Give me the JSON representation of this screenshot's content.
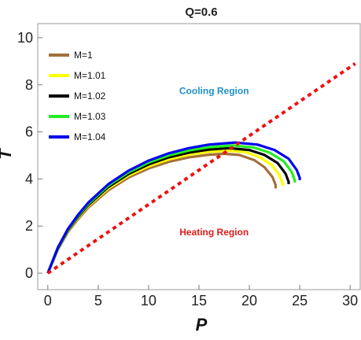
{
  "chart_data": {
    "type": "line",
    "title": "Q=0.6",
    "xlabel": "P",
    "ylabel": "T",
    "xlim": [
      -1,
      31
    ],
    "ylim": [
      -0.7,
      10.6
    ],
    "xticks": [
      0,
      5,
      10,
      15,
      20,
      25,
      30
    ],
    "yticks": [
      0,
      2,
      4,
      6,
      8,
      10
    ],
    "xtick_labels": [
      "0",
      "5",
      "10",
      "15",
      "20",
      "25",
      "30"
    ],
    "ytick_labels": [
      "0",
      "2",
      "4",
      "6",
      "8",
      "10"
    ],
    "grid": false,
    "legend_position": "top-left",
    "series": [
      {
        "name": "M=1",
        "color": "#a2703a",
        "x": [
          0,
          1,
          2,
          3,
          4,
          6,
          8,
          10,
          12,
          14,
          16,
          17.5,
          19,
          20.5,
          21.5,
          22.3,
          22.6,
          22.6
        ],
        "y": [
          0,
          1.0,
          1.75,
          2.3,
          2.78,
          3.52,
          4.06,
          4.45,
          4.73,
          4.92,
          5.03,
          5.07,
          5.02,
          4.8,
          4.5,
          4.08,
          3.75,
          3.6
        ]
      },
      {
        "name": "M=1.01",
        "color": "#ffff00",
        "x": [
          0,
          1,
          2,
          3,
          4,
          6,
          8,
          10,
          12,
          14,
          16,
          17.8,
          19.5,
          21,
          22.2,
          23.0,
          23.3,
          23.3
        ],
        "y": [
          0,
          1.03,
          1.79,
          2.36,
          2.84,
          3.6,
          4.14,
          4.54,
          4.83,
          5.03,
          5.15,
          5.2,
          5.15,
          4.93,
          4.6,
          4.15,
          3.8,
          3.7
        ]
      },
      {
        "name": "M=1.02",
        "color": "#000000",
        "x": [
          0,
          1,
          2,
          3,
          4,
          6,
          8,
          10,
          12,
          14,
          16,
          18.0,
          20,
          21.5,
          22.8,
          23.6,
          23.9,
          23.9
        ],
        "y": [
          0,
          1.05,
          1.82,
          2.4,
          2.89,
          3.66,
          4.21,
          4.62,
          4.92,
          5.12,
          5.25,
          5.31,
          5.23,
          5.02,
          4.68,
          4.22,
          3.88,
          3.78
        ]
      },
      {
        "name": "M=1.03",
        "color": "#22ee22",
        "x": [
          0,
          1,
          2,
          3,
          4,
          6,
          8,
          10,
          12,
          14,
          16,
          18.3,
          20.4,
          22.0,
          23.4,
          24.2,
          24.5,
          24.5
        ],
        "y": [
          0,
          1.07,
          1.85,
          2.44,
          2.94,
          3.72,
          4.28,
          4.7,
          5.0,
          5.21,
          5.35,
          5.42,
          5.34,
          5.12,
          4.76,
          4.3,
          3.95,
          3.85
        ]
      },
      {
        "name": "M=1.04",
        "color": "#0000ee",
        "x": [
          0,
          1,
          2,
          3,
          4,
          6,
          8,
          10,
          12,
          14,
          16,
          18.6,
          20.8,
          22.5,
          23.9,
          24.7,
          25.0,
          25.0
        ],
        "y": [
          0,
          1.09,
          1.88,
          2.48,
          2.99,
          3.78,
          4.35,
          4.78,
          5.09,
          5.31,
          5.46,
          5.55,
          5.46,
          5.23,
          4.86,
          4.38,
          4.05,
          3.95
        ]
      },
      {
        "name": "",
        "color": "#ee1111",
        "dashed": true,
        "x": [
          0,
          30.5
        ],
        "y": [
          0,
          8.9
        ]
      }
    ],
    "annotations": [
      {
        "text": "Cooling Region",
        "x": 16.5,
        "y": 7.6,
        "color": "#1e90c8"
      },
      {
        "text": "Heating Region",
        "x": 16.5,
        "y": 1.6,
        "color": "#e01b1b"
      }
    ]
  }
}
